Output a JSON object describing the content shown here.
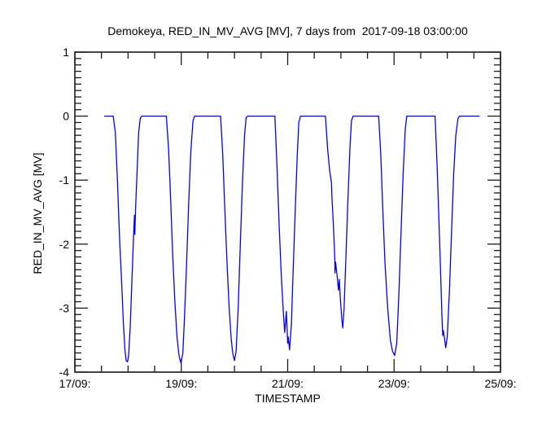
{
  "chart_data": {
    "type": "line",
    "title": "Demokeya, RED_IN_MV_AVG [MV], 7 days from  2017-09-18 03:00:00",
    "xlabel": "TIMESTAMP",
    "ylabel": "RED_IN_MV_AVG [MV]",
    "x_unit": "days since 2017-09-17 00:00",
    "xlim": [
      0,
      8
    ],
    "ylim": [
      -4,
      1
    ],
    "grid": false,
    "legend": "none",
    "x_major_ticks": [
      {
        "pos": 0,
        "label": "17/09:"
      },
      {
        "pos": 2,
        "label": "19/09:"
      },
      {
        "pos": 4,
        "label": "21/09:"
      },
      {
        "pos": 6,
        "label": "23/09:"
      },
      {
        "pos": 8,
        "label": "25/09:"
      }
    ],
    "x_minor_step": 0.5,
    "y_major_ticks": [
      {
        "pos": 1,
        "label": "1"
      },
      {
        "pos": 0,
        "label": "0"
      },
      {
        "pos": -1,
        "label": "-1"
      },
      {
        "pos": -2,
        "label": "-2"
      },
      {
        "pos": -3,
        "label": "-3"
      },
      {
        "pos": -4,
        "label": "-4"
      }
    ],
    "y_minor_step": 0.1,
    "line_color": "#0000ff",
    "axis_color": "#1a1a1a",
    "background_color": "#ffffff",
    "series": [
      {
        "name": "RED_IN_MV_AVG [MV]",
        "points": [
          [
            0.55,
            0
          ],
          [
            0.72,
            0
          ],
          [
            0.76,
            -0.25
          ],
          [
            0.8,
            -1.0
          ],
          [
            0.84,
            -1.9
          ],
          [
            0.88,
            -2.6
          ],
          [
            0.91,
            -3.2
          ],
          [
            0.94,
            -3.65
          ],
          [
            0.965,
            -3.82
          ],
          [
            0.99,
            -3.84
          ],
          [
            1.01,
            -3.75
          ],
          [
            1.04,
            -3.3
          ],
          [
            1.07,
            -2.6
          ],
          [
            1.1,
            -1.95
          ],
          [
            1.12,
            -1.55
          ],
          [
            1.128,
            -1.85
          ],
          [
            1.14,
            -1.48
          ],
          [
            1.17,
            -0.85
          ],
          [
            1.2,
            -0.25
          ],
          [
            1.23,
            -0.03
          ],
          [
            1.26,
            0
          ],
          [
            1.72,
            0
          ],
          [
            1.76,
            -0.5
          ],
          [
            1.8,
            -1.3
          ],
          [
            1.84,
            -2.2
          ],
          [
            1.88,
            -2.9
          ],
          [
            1.92,
            -3.45
          ],
          [
            1.96,
            -3.75
          ],
          [
            1.995,
            -3.86
          ],
          [
            2.03,
            -3.7
          ],
          [
            2.06,
            -3.15
          ],
          [
            2.1,
            -2.3
          ],
          [
            2.14,
            -1.35
          ],
          [
            2.18,
            -0.55
          ],
          [
            2.22,
            -0.08
          ],
          [
            2.25,
            0
          ],
          [
            2.74,
            0
          ],
          [
            2.78,
            -0.6
          ],
          [
            2.82,
            -1.5
          ],
          [
            2.86,
            -2.3
          ],
          [
            2.9,
            -3.0
          ],
          [
            2.94,
            -3.5
          ],
          [
            2.97,
            -3.72
          ],
          [
            3.0,
            -3.82
          ],
          [
            3.03,
            -3.68
          ],
          [
            3.07,
            -3.0
          ],
          [
            3.11,
            -2.0
          ],
          [
            3.15,
            -1.05
          ],
          [
            3.19,
            -0.3
          ],
          [
            3.22,
            -0.02
          ],
          [
            3.25,
            0
          ],
          [
            3.76,
            0
          ],
          [
            3.8,
            -0.8
          ],
          [
            3.84,
            -1.7
          ],
          [
            3.88,
            -2.5
          ],
          [
            3.92,
            -3.1
          ],
          [
            3.945,
            -3.38
          ],
          [
            3.975,
            -3.05
          ],
          [
            4.0,
            -3.55
          ],
          [
            4.01,
            -3.45
          ],
          [
            4.035,
            -3.65
          ],
          [
            4.07,
            -3.25
          ],
          [
            4.1,
            -2.5
          ],
          [
            4.14,
            -1.5
          ],
          [
            4.18,
            -0.6
          ],
          [
            4.21,
            -0.1
          ],
          [
            4.24,
            0
          ],
          [
            4.71,
            0
          ],
          [
            4.75,
            -0.5
          ],
          [
            4.79,
            -0.85
          ],
          [
            4.825,
            -1.05
          ],
          [
            4.83,
            -1.25
          ],
          [
            4.86,
            -1.7
          ],
          [
            4.885,
            -2.22
          ],
          [
            4.89,
            -2.45
          ],
          [
            4.9,
            -2.28
          ],
          [
            4.93,
            -2.5
          ],
          [
            4.955,
            -2.72
          ],
          [
            4.97,
            -2.55
          ],
          [
            4.99,
            -2.85
          ],
          [
            5.02,
            -3.2
          ],
          [
            5.035,
            -3.31
          ],
          [
            5.06,
            -3.0
          ],
          [
            5.09,
            -2.3
          ],
          [
            5.13,
            -1.35
          ],
          [
            5.17,
            -0.5
          ],
          [
            5.2,
            -0.07
          ],
          [
            5.23,
            0
          ],
          [
            5.71,
            0
          ],
          [
            5.75,
            -0.6
          ],
          [
            5.79,
            -1.5
          ],
          [
            5.83,
            -2.3
          ],
          [
            5.88,
            -3.0
          ],
          [
            5.93,
            -3.5
          ],
          [
            5.97,
            -3.67
          ],
          [
            6.01,
            -3.74
          ],
          [
            6.05,
            -3.55
          ],
          [
            6.09,
            -2.8
          ],
          [
            6.13,
            -1.85
          ],
          [
            6.17,
            -0.9
          ],
          [
            6.21,
            -0.2
          ],
          [
            6.24,
            0
          ],
          [
            6.77,
            0
          ],
          [
            6.81,
            -0.8
          ],
          [
            6.85,
            -1.8
          ],
          [
            6.88,
            -2.6
          ],
          [
            6.9,
            -3.15
          ],
          [
            6.915,
            -3.43
          ],
          [
            6.925,
            -3.35
          ],
          [
            6.945,
            -3.45
          ],
          [
            6.97,
            -3.62
          ],
          [
            7.0,
            -3.45
          ],
          [
            7.04,
            -2.75
          ],
          [
            7.08,
            -1.8
          ],
          [
            7.12,
            -0.9
          ],
          [
            7.16,
            -0.3
          ],
          [
            7.2,
            -0.04
          ],
          [
            7.23,
            0
          ],
          [
            7.61,
            0
          ]
        ]
      }
    ]
  }
}
